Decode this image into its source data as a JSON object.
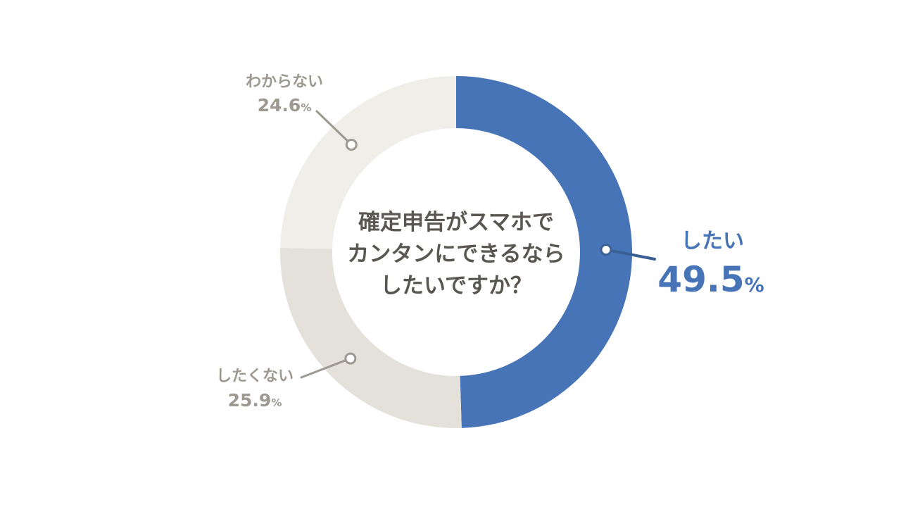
{
  "chart_data": {
    "type": "pie",
    "variant": "donut",
    "center_text": [
      "確定申告がスマホで",
      "カンタンにできるなら",
      "したいですか？"
    ],
    "unit": "%",
    "slices": [
      {
        "label": "したい",
        "value": 49.5,
        "value_text": "49.5",
        "color": "#4674b6",
        "text_color": "#4674b6"
      },
      {
        "label": "したくない",
        "value": 25.9,
        "value_text": "25.9",
        "color": "#e4e1da",
        "text_color": "#9d9890"
      },
      {
        "label": "わからない",
        "value": 24.6,
        "value_text": "24.6",
        "color": "#efeee9",
        "text_color": "#9d9890"
      }
    ]
  }
}
